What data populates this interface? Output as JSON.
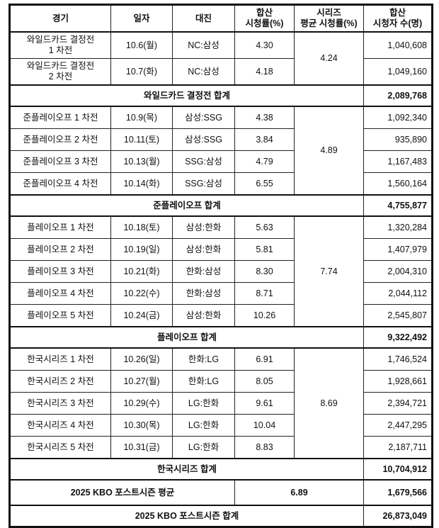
{
  "headers": [
    "경기",
    "일자",
    "대진",
    "합산\n시청률(%)",
    "시리즈\n평균 시청률(%)",
    "합산\n시청자 수(명)"
  ],
  "groups": [
    {
      "rows": [
        [
          "와일드카드 결정전\n1 차전",
          "10.6(월)",
          "NC:삼성",
          "4.30",
          "1,040,608"
        ],
        [
          "와일드카드 결정전\n2 차전",
          "10.7(화)",
          "NC:삼성",
          "4.18",
          "1,049,160"
        ]
      ],
      "series_avg": "4.24",
      "total_label": "와일드카드 결정전 합계",
      "total": "2,089,768"
    },
    {
      "rows": [
        [
          "준플레이오프 1 차전",
          "10.9(목)",
          "삼성:SSG",
          "4.38",
          "1,092,340"
        ],
        [
          "준플레이오프 2 차전",
          "10.11(토)",
          "삼성:SSG",
          "3.84",
          "935,890"
        ],
        [
          "준플레이오프 3 차전",
          "10.13(월)",
          "SSG:삼성",
          "4.79",
          "1,167,483"
        ],
        [
          "준플레이오프 4 차전",
          "10.14(화)",
          "SSG:삼성",
          "6.55",
          "1,560,164"
        ]
      ],
      "series_avg": "4.89",
      "total_label": "준플레이오프 합계",
      "total": "4,755,877"
    },
    {
      "rows": [
        [
          "플레이오프 1 차전",
          "10.18(토)",
          "삼성:한화",
          "5.63",
          "1,320,284"
        ],
        [
          "플레이오프 2 차전",
          "10.19(일)",
          "삼성:한화",
          "5.81",
          "1,407,979"
        ],
        [
          "플레이오프 3 차전",
          "10.21(화)",
          "한화:삼성",
          "8.30",
          "2,004,310"
        ],
        [
          "플레이오프 4 차전",
          "10.22(수)",
          "한화:삼성",
          "8.71",
          "2,044,112"
        ],
        [
          "플레이오프 5 차전",
          "10.24(금)",
          "삼성:한화",
          "10.26",
          "2,545,807"
        ]
      ],
      "series_avg": "7.74",
      "total_label": "플레이오프 합계",
      "total": "9,322,492"
    },
    {
      "rows": [
        [
          "한국시리즈 1 차전",
          "10.26(일)",
          "한화:LG",
          "6.91",
          "1,746,524"
        ],
        [
          "한국시리즈 2 차전",
          "10.27(월)",
          "한화:LG",
          "8.05",
          "1,928,661"
        ],
        [
          "한국시리즈 3 차전",
          "10.29(수)",
          "LG:한화",
          "9.61",
          "2,394,721"
        ],
        [
          "한국시리즈 4 차전",
          "10.30(목)",
          "LG:한화",
          "10.04",
          "2,447,295"
        ],
        [
          "한국시리즈 5 차전",
          "10.31(금)",
          "LG:한화",
          "8.83",
          "2,187,711"
        ]
      ],
      "series_avg": "8.69",
      "total_label": "한국시리즈 합계",
      "total": "10,704,912"
    }
  ],
  "average": {
    "label": "2025 KBO 포스트시즌 평균",
    "rating": "6.89",
    "viewers": "1,679,566"
  },
  "grand_total": {
    "label": "2025 KBO 포스트시즌 합계",
    "viewers": "26,873,049"
  }
}
